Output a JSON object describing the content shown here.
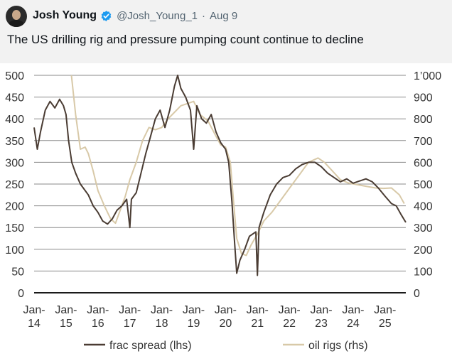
{
  "tweet": {
    "author_name": "Josh Young",
    "handle": "@Josh_Young_1",
    "separator": "·",
    "date": "Aug 9",
    "text": "The US drilling rig and pressure pumping count continue to decline",
    "verified_color": "#1d9bf0"
  },
  "chart_data": {
    "type": "line",
    "title": "",
    "xlabel": "",
    "ylabel_left": "",
    "ylabel_right": "",
    "x_ticks": [
      {
        "label": [
          "Jan-",
          "14"
        ],
        "x": 2014.0
      },
      {
        "label": [
          "Jan-",
          "15"
        ],
        "x": 2015.0
      },
      {
        "label": [
          "Jan-",
          "16"
        ],
        "x": 2016.0
      },
      {
        "label": [
          "Jan-",
          "17"
        ],
        "x": 2017.0
      },
      {
        "label": [
          "Jan-",
          "18"
        ],
        "x": 2018.0
      },
      {
        "label": [
          "Jan-",
          "19"
        ],
        "x": 2019.0
      },
      {
        "label": [
          "Jan-",
          "20"
        ],
        "x": 2020.0
      },
      {
        "label": [
          "Jan-",
          "21"
        ],
        "x": 2021.0
      },
      {
        "label": [
          "Jan-",
          "22"
        ],
        "x": 2022.0
      },
      {
        "label": [
          "Jan-",
          "23"
        ],
        "x": 2023.0
      },
      {
        "label": [
          "Jan-",
          "24"
        ],
        "x": 2024.0
      },
      {
        "label": [
          "Jan-",
          "25"
        ],
        "x": 2025.0
      }
    ],
    "x_range": [
      2014.0,
      2025.65
    ],
    "y_left": {
      "range": [
        0,
        500
      ],
      "ticks": [
        "0",
        "50",
        "100",
        "150",
        "200",
        "250",
        "300",
        "350",
        "400",
        "450",
        "500"
      ]
    },
    "y_right": {
      "range": [
        0,
        1000
      ],
      "ticks": [
        "0",
        "100",
        "200",
        "300",
        "400",
        "500",
        "600",
        "700",
        "800",
        "900",
        "1’000"
      ]
    },
    "grid": true,
    "legend_placement": "bottom",
    "series": [
      {
        "name": "frac spread (lhs)",
        "axis": "left",
        "color": "#4a3c33",
        "points": [
          [
            2014.0,
            380
          ],
          [
            2014.1,
            330
          ],
          [
            2014.2,
            370
          ],
          [
            2014.35,
            420
          ],
          [
            2014.5,
            440
          ],
          [
            2014.65,
            425
          ],
          [
            2014.8,
            445
          ],
          [
            2014.92,
            430
          ],
          [
            2015.0,
            410
          ],
          [
            2015.08,
            350
          ],
          [
            2015.18,
            300
          ],
          [
            2015.3,
            275
          ],
          [
            2015.45,
            250
          ],
          [
            2015.55,
            240
          ],
          [
            2015.7,
            225
          ],
          [
            2015.85,
            200
          ],
          [
            2016.0,
            185
          ],
          [
            2016.15,
            165
          ],
          [
            2016.3,
            158
          ],
          [
            2016.45,
            170
          ],
          [
            2016.6,
            190
          ],
          [
            2016.75,
            200
          ],
          [
            2016.9,
            215
          ],
          [
            2017.0,
            150
          ],
          [
            2017.05,
            215
          ],
          [
            2017.2,
            230
          ],
          [
            2017.35,
            275
          ],
          [
            2017.5,
            320
          ],
          [
            2017.65,
            360
          ],
          [
            2017.8,
            400
          ],
          [
            2017.95,
            420
          ],
          [
            2018.1,
            380
          ],
          [
            2018.25,
            420
          ],
          [
            2018.4,
            475
          ],
          [
            2018.5,
            500
          ],
          [
            2018.6,
            470
          ],
          [
            2018.75,
            450
          ],
          [
            2018.9,
            420
          ],
          [
            2019.0,
            330
          ],
          [
            2019.1,
            430
          ],
          [
            2019.25,
            400
          ],
          [
            2019.4,
            390
          ],
          [
            2019.55,
            410
          ],
          [
            2019.7,
            370
          ],
          [
            2019.85,
            345
          ],
          [
            2020.0,
            330
          ],
          [
            2020.1,
            300
          ],
          [
            2020.2,
            210
          ],
          [
            2020.28,
            120
          ],
          [
            2020.35,
            45
          ],
          [
            2020.45,
            75
          ],
          [
            2020.6,
            100
          ],
          [
            2020.75,
            130
          ],
          [
            2020.95,
            140
          ],
          [
            2021.0,
            40
          ],
          [
            2021.05,
            150
          ],
          [
            2021.2,
            185
          ],
          [
            2021.4,
            225
          ],
          [
            2021.6,
            250
          ],
          [
            2021.8,
            265
          ],
          [
            2022.0,
            270
          ],
          [
            2022.2,
            285
          ],
          [
            2022.4,
            295
          ],
          [
            2022.6,
            300
          ],
          [
            2022.8,
            300
          ],
          [
            2023.0,
            290
          ],
          [
            2023.2,
            275
          ],
          [
            2023.4,
            265
          ],
          [
            2023.6,
            255
          ],
          [
            2023.8,
            262
          ],
          [
            2024.0,
            252
          ],
          [
            2024.2,
            257
          ],
          [
            2024.4,
            262
          ],
          [
            2024.6,
            255
          ],
          [
            2024.8,
            240
          ],
          [
            2025.0,
            222
          ],
          [
            2025.2,
            205
          ],
          [
            2025.35,
            200
          ],
          [
            2025.5,
            180
          ],
          [
            2025.65,
            162
          ]
        ]
      },
      {
        "name": "oil rigs (rhs)",
        "axis": "right",
        "color": "#d8c9a8",
        "points": [
          [
            2015.17,
            1000
          ],
          [
            2015.3,
            820
          ],
          [
            2015.45,
            660
          ],
          [
            2015.6,
            670
          ],
          [
            2015.7,
            640
          ],
          [
            2015.85,
            560
          ],
          [
            2016.0,
            470
          ],
          [
            2016.2,
            400
          ],
          [
            2016.4,
            340
          ],
          [
            2016.55,
            320
          ],
          [
            2016.7,
            380
          ],
          [
            2016.85,
            440
          ],
          [
            2017.0,
            520
          ],
          [
            2017.2,
            600
          ],
          [
            2017.4,
            700
          ],
          [
            2017.6,
            760
          ],
          [
            2017.8,
            750
          ],
          [
            2018.0,
            760
          ],
          [
            2018.2,
            800
          ],
          [
            2018.4,
            830
          ],
          [
            2018.6,
            860
          ],
          [
            2018.8,
            870
          ],
          [
            2019.0,
            880
          ],
          [
            2019.2,
            820
          ],
          [
            2019.45,
            790
          ],
          [
            2019.7,
            720
          ],
          [
            2019.85,
            680
          ],
          [
            2020.0,
            670
          ],
          [
            2020.15,
            600
          ],
          [
            2020.25,
            420
          ],
          [
            2020.35,
            250
          ],
          [
            2020.5,
            180
          ],
          [
            2020.65,
            172
          ],
          [
            2020.8,
            220
          ],
          [
            2021.0,
            270
          ],
          [
            2021.2,
            330
          ],
          [
            2021.45,
            370
          ],
          [
            2021.7,
            420
          ],
          [
            2022.0,
            480
          ],
          [
            2022.3,
            540
          ],
          [
            2022.6,
            600
          ],
          [
            2022.9,
            620
          ],
          [
            2023.1,
            600
          ],
          [
            2023.35,
            560
          ],
          [
            2023.6,
            520
          ],
          [
            2023.85,
            505
          ],
          [
            2024.1,
            498
          ],
          [
            2024.4,
            490
          ],
          [
            2024.7,
            482
          ],
          [
            2024.95,
            480
          ],
          [
            2025.2,
            482
          ],
          [
            2025.45,
            450
          ],
          [
            2025.6,
            410
          ]
        ]
      }
    ]
  }
}
